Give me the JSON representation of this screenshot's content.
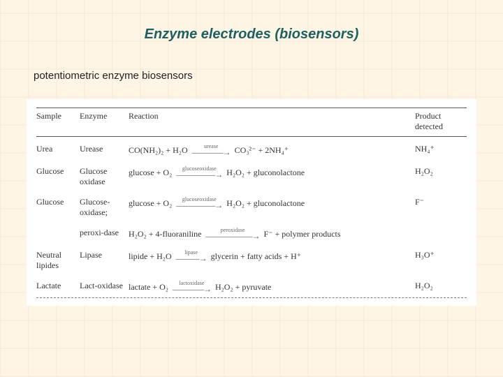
{
  "colors": {
    "page_bg": "#fdf5e6",
    "title_color": "#1f5f5f",
    "table_bg": "#ffffff",
    "text_color": "#333333",
    "rule_color": "#555555",
    "dashed_color": "#777777"
  },
  "typography": {
    "title_fontsize": 20,
    "title_style": "italic bold",
    "subtitle_fontsize": 15,
    "body_fontsize": 12,
    "body_family": "serif"
  },
  "title": "Enzyme electrodes (biosensors)",
  "subtitle": "potentiometric enzyme biosensors",
  "table": {
    "headers": {
      "sample": "Sample",
      "enzyme": "Enzyme",
      "reaction": "Reaction",
      "product": "Product detected"
    },
    "rows": [
      {
        "sample": "Urea",
        "enzyme": "Urease",
        "reaction": {
          "lhs": "CO(NH₂)₂ + H₂O",
          "catalyst": "urease",
          "rhs": "CO₃²⁻ + 2NH₄⁺"
        },
        "product": "NH₄⁺"
      },
      {
        "sample": "Glucose",
        "enzyme": "Glucose oxidase",
        "reaction": {
          "lhs": "glucose + O₂",
          "catalyst": "glucoseoxidase",
          "rhs": "H₂O₂ + gluconolactone"
        },
        "product": "H₂O₂"
      },
      {
        "sample": "Glucose",
        "enzyme": "Glucose-oxidase;",
        "reaction": {
          "lhs": "glucose + O₂",
          "catalyst": "glucoseoxidase",
          "rhs": "H₂O₂ + gluconolactone"
        },
        "product": "F⁻"
      },
      {
        "sample": "",
        "enzyme": "peroxi-dase",
        "reaction": {
          "lhs": "H₂O₂ + 4-fluoraniline",
          "catalyst": "peroxidase",
          "rhs": "F⁻ + polymer products"
        },
        "product": ""
      },
      {
        "sample": "Neutral lipides",
        "enzyme": "Lipase",
        "reaction": {
          "lhs": "lipide + H₂O",
          "catalyst": "lipase",
          "rhs": "glycerin + fatty acids + H⁺"
        },
        "product": "H₃O⁺"
      },
      {
        "sample": "Lactate",
        "enzyme": "Lact-oxidase",
        "reaction": {
          "lhs": "lactate + O₂",
          "catalyst": "lactoxidase",
          "rhs": "H₂O₂ + pyruvate"
        },
        "product": "H₂O₂"
      }
    ]
  }
}
